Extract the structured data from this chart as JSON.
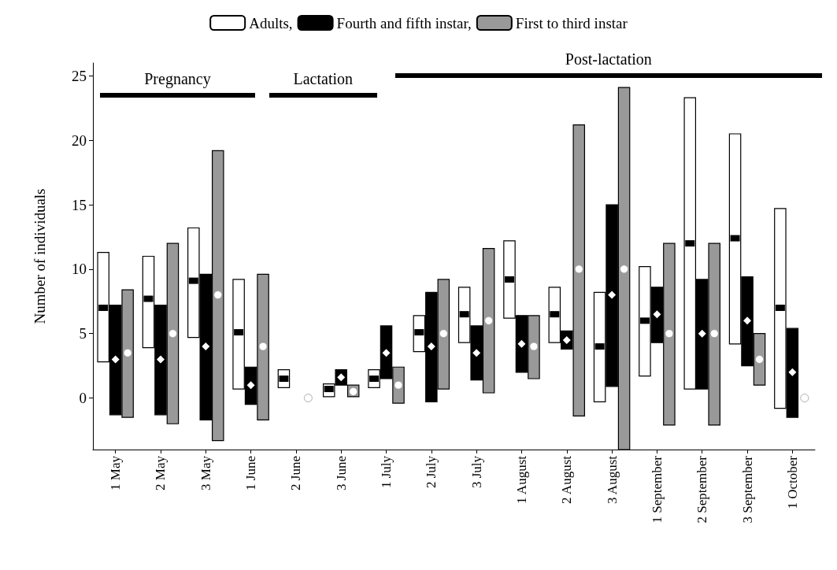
{
  "chart_data": {
    "type": "bar",
    "ylabel": "Number of individuals",
    "categories": [
      "1 May",
      "2 May",
      "3 May",
      "1 June",
      "2 June",
      "3 June",
      "1 July",
      "2 July",
      "3 July",
      "1 August",
      "2 August",
      "3 August",
      "1 September",
      "2 September",
      "3 September",
      "1 October"
    ],
    "ylim": [
      -4,
      26
    ],
    "yticks": [
      0,
      5,
      10,
      15,
      20,
      25
    ],
    "grid": false,
    "legend": "top",
    "series": [
      {
        "name": "Adults,",
        "color": "#ffffff",
        "base": [
          2.8,
          3.9,
          4.7,
          0.7,
          0.8,
          0.1,
          0.8,
          3.6,
          4.3,
          6.2,
          4.3,
          -0.3,
          1.7,
          0.7,
          4.2,
          -0.8
        ],
        "values": [
          8.5,
          7.1,
          8.5,
          8.5,
          1.4,
          1.0,
          1.4,
          2.8,
          4.3,
          6.0,
          4.3,
          8.5,
          8.5,
          22.6,
          16.3,
          15.5
        ]
      },
      {
        "name": "Fourth and fifth instar,",
        "color": "#000000",
        "base": [
          -1.3,
          -1.3,
          -1.7,
          -0.5,
          null,
          1.0,
          1.5,
          -0.3,
          1.4,
          2.0,
          3.8,
          0.9,
          4.3,
          0.7,
          2.5,
          -1.5
        ],
        "values": [
          8.5,
          8.5,
          11.3,
          2.9,
          null,
          1.2,
          4.1,
          8.5,
          4.2,
          4.4,
          1.4,
          14.1,
          4.3,
          8.5,
          6.9,
          6.9
        ]
      },
      {
        "name": "First to third instar",
        "color": "#999999",
        "base": [
          -1.5,
          -2.0,
          -3.3,
          -1.7,
          null,
          0.1,
          -0.4,
          0.7,
          0.4,
          1.5,
          -1.4,
          -4.0,
          -2.1,
          -2.1,
          1.0,
          null
        ],
        "values": [
          9.9,
          14.0,
          22.5,
          11.3,
          null,
          0.9,
          2.8,
          8.5,
          11.2,
          4.9,
          22.6,
          28.1,
          14.1,
          14.1,
          4.0,
          null
        ]
      },
      {
        "type": "scatter",
        "marker": "square",
        "color": "#000000",
        "x": [
          "1 May",
          "2 May",
          "3 May",
          "1 June",
          "2 June",
          "3 June",
          "1 July",
          "2 July",
          "3 July",
          "1 August",
          "2 August",
          "3 August",
          "1 September",
          "2 September",
          "3 September",
          "1 October"
        ],
        "values": [
          7.0,
          7.7,
          9.1,
          5.1,
          1.5,
          0.7,
          1.5,
          5.1,
          6.5,
          9.2,
          6.5,
          4.0,
          6.0,
          12.0,
          12.4,
          7.0
        ]
      },
      {
        "type": "scatter",
        "marker": "diamond",
        "color": "#ffffff",
        "x": [
          "1 May",
          "2 May",
          "3 May",
          "1 June",
          "3 June",
          "1 July",
          "2 July",
          "3 July",
          "1 August",
          "2 August",
          "3 August",
          "1 September",
          "2 September",
          "3 September",
          "1 October"
        ],
        "values": [
          3.0,
          3.0,
          4.0,
          1.0,
          1.6,
          3.5,
          4.0,
          3.5,
          4.2,
          4.5,
          8.0,
          6.5,
          5.0,
          6.0,
          2.0
        ]
      },
      {
        "type": "scatter",
        "marker": "circle",
        "color": "#ffffff",
        "x": [
          "1 May",
          "2 May",
          "3 May",
          "1 June",
          "2 June",
          "3 June",
          "1 July",
          "2 July",
          "3 July",
          "1 August",
          "2 August",
          "3 August",
          "1 September",
          "2 September",
          "3 September",
          "1 October"
        ],
        "values": [
          3.5,
          5.0,
          8.0,
          4.0,
          0,
          0.5,
          1.0,
          5.0,
          6.0,
          4.0,
          10.0,
          10.0,
          5.0,
          5.0,
          3.0,
          0
        ]
      }
    ],
    "annotations": [
      "Pregnancy",
      "Lactation",
      "Post-lactation"
    ]
  }
}
